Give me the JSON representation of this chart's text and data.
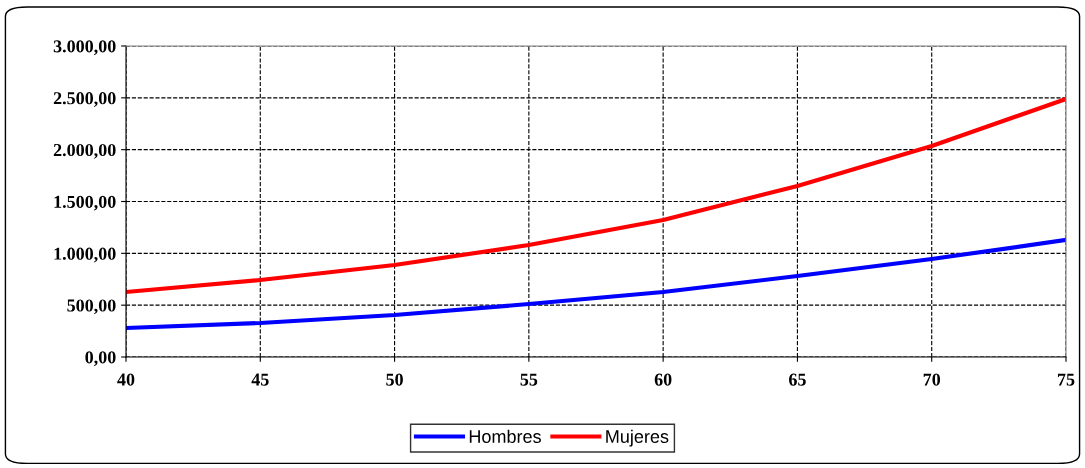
{
  "chart_data": {
    "type": "line",
    "x": [
      40,
      45,
      50,
      55,
      60,
      65,
      70,
      75
    ],
    "series": [
      {
        "name": "Hombres",
        "color": "#0000ff",
        "values": [
          280,
          328,
          405,
          511,
          627,
          781,
          945,
          1129
        ]
      },
      {
        "name": "Mujeres",
        "color": "#ff0000",
        "values": [
          627,
          743,
          887,
          1080,
          1322,
          1650,
          2035,
          2489
        ]
      }
    ],
    "xlim": [
      40,
      75
    ],
    "xticks": [
      40,
      45,
      50,
      55,
      60,
      65,
      70,
      75
    ],
    "ylim": [
      0,
      3000
    ],
    "yticks": [
      {
        "value": 0,
        "label": "0,00"
      },
      {
        "value": 500,
        "label": "500,00"
      },
      {
        "value": 1000,
        "label": "1.000,00"
      },
      {
        "value": 1500,
        "label": "1.500,00"
      },
      {
        "value": 2000,
        "label": "2.000,00"
      },
      {
        "value": 2500,
        "label": "2.500,00"
      },
      {
        "value": 3000,
        "label": "3.000,00"
      }
    ],
    "grid": true,
    "legend": "bottom",
    "line_style": "solid",
    "marker": "none"
  }
}
